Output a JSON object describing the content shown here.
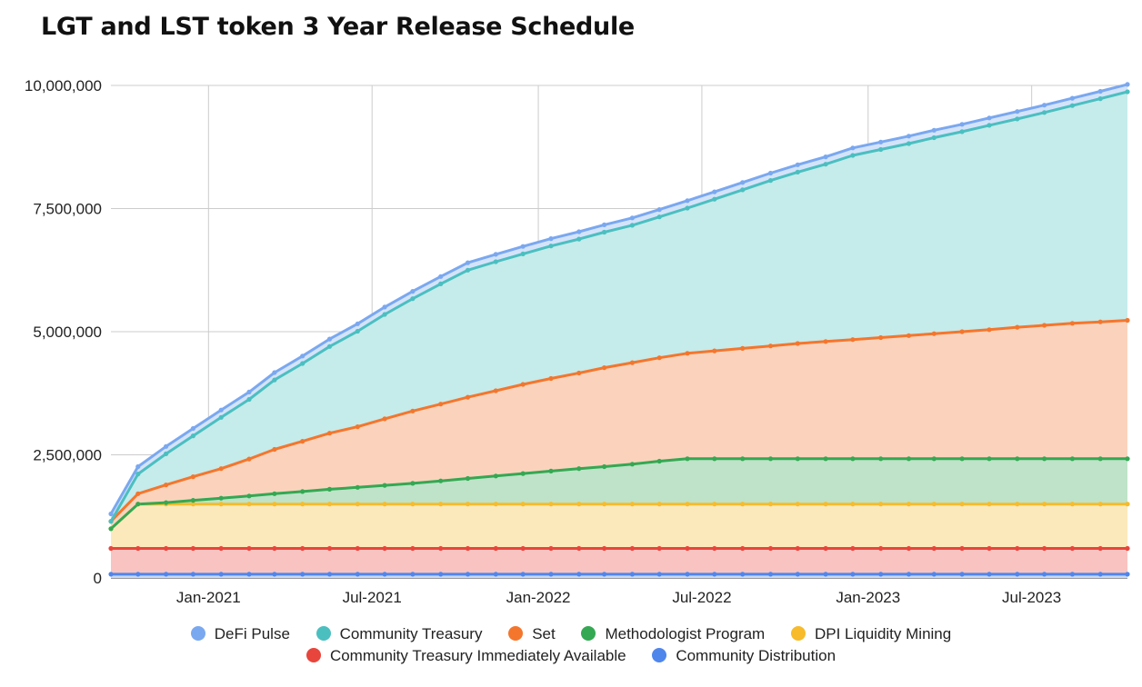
{
  "chart_data": {
    "type": "area",
    "stacked": true,
    "title": "LGT and LST token 3 Year Release Schedule",
    "xlabel": "",
    "ylabel": "",
    "ylim": [
      0,
      10000000
    ],
    "xlim": [
      "2020-09-15",
      "2023-10-15"
    ],
    "y_ticks": [
      0,
      2500000,
      5000000,
      7500000,
      10000000
    ],
    "y_tick_labels": [
      "0",
      "2,500,000",
      "5,000,000",
      "7,500,000",
      "10,000,000"
    ],
    "x_ticks": [
      "2021-01-01",
      "2021-07-01",
      "2022-01-01",
      "2022-07-01",
      "2023-01-01",
      "2023-07-01"
    ],
    "x_tick_labels": [
      "Jan-2021",
      "Jul-2021",
      "Jan-2022",
      "Jul-2022",
      "Jan-2023",
      "Jul-2023"
    ],
    "grid": true,
    "legend_position": "bottom",
    "x": [
      "2020-09-15",
      "2020-10-15",
      "2020-11-15",
      "2020-12-15",
      "2021-01-15",
      "2021-02-15",
      "2021-03-15",
      "2021-04-15",
      "2021-05-15",
      "2021-06-15",
      "2021-07-15",
      "2021-08-15",
      "2021-09-15",
      "2021-10-15",
      "2021-11-15",
      "2021-12-15",
      "2022-01-15",
      "2022-02-15",
      "2022-03-15",
      "2022-04-15",
      "2022-05-15",
      "2022-06-15",
      "2022-07-15",
      "2022-08-15",
      "2022-09-15",
      "2022-10-15",
      "2022-11-15",
      "2022-12-15",
      "2023-01-15",
      "2023-02-15",
      "2023-03-15",
      "2023-04-15",
      "2023-05-15",
      "2023-06-15",
      "2023-07-15",
      "2023-08-15",
      "2023-09-15",
      "2023-10-15"
    ],
    "series": [
      {
        "name": "Community Distribution",
        "color": "#4f86ec",
        "values": [
          75000,
          75000,
          75000,
          75000,
          75000,
          75000,
          75000,
          75000,
          75000,
          75000,
          75000,
          75000,
          75000,
          75000,
          75000,
          75000,
          75000,
          75000,
          75000,
          75000,
          75000,
          75000,
          75000,
          75000,
          75000,
          75000,
          75000,
          75000,
          75000,
          75000,
          75000,
          75000,
          75000,
          75000,
          75000,
          75000,
          75000,
          75000
        ]
      },
      {
        "name": "Community Treasury Immediately Available",
        "color": "#e8453c",
        "values": [
          525000,
          525000,
          525000,
          525000,
          525000,
          525000,
          525000,
          525000,
          525000,
          525000,
          525000,
          525000,
          525000,
          525000,
          525000,
          525000,
          525000,
          525000,
          525000,
          525000,
          525000,
          525000,
          525000,
          525000,
          525000,
          525000,
          525000,
          525000,
          525000,
          525000,
          525000,
          525000,
          525000,
          525000,
          525000,
          525000,
          525000,
          525000
        ]
      },
      {
        "name": "DPI Liquidity Mining",
        "color": "#f7bb2b",
        "values": [
          400000,
          900000,
          900000,
          900000,
          900000,
          900000,
          900000,
          900000,
          900000,
          900000,
          900000,
          900000,
          900000,
          900000,
          900000,
          900000,
          900000,
          900000,
          900000,
          900000,
          900000,
          900000,
          900000,
          900000,
          900000,
          900000,
          900000,
          900000,
          900000,
          900000,
          900000,
          900000,
          900000,
          900000,
          900000,
          900000,
          900000,
          900000
        ]
      },
      {
        "name": "Methodologist Program",
        "color": "#34a853",
        "values": [
          0,
          0,
          30000,
          75000,
          120000,
          165000,
          210000,
          255000,
          300000,
          340000,
          380000,
          420000,
          470000,
          520000,
          570000,
          620000,
          670000,
          720000,
          760000,
          810000,
          870000,
          920000,
          920000,
          920000,
          920000,
          920000,
          920000,
          920000,
          920000,
          920000,
          920000,
          920000,
          920000,
          920000,
          920000,
          920000,
          920000,
          920000
        ]
      },
      {
        "name": "Set",
        "color": "#f4762d",
        "values": [
          150000,
          210000,
          360000,
          480000,
          600000,
          750000,
          900000,
          1020000,
          1140000,
          1230000,
          1350000,
          1470000,
          1560000,
          1650000,
          1730000,
          1810000,
          1880000,
          1940000,
          2010000,
          2060000,
          2100000,
          2140000,
          2190000,
          2240000,
          2290000,
          2340000,
          2380000,
          2420000,
          2460000,
          2500000,
          2540000,
          2580000,
          2620000,
          2670000,
          2710000,
          2750000,
          2780000,
          2810000
        ]
      },
      {
        "name": "Community Treasury",
        "color": "#4bbfc0",
        "values": [
          0,
          400000,
          630000,
          830000,
          1040000,
          1210000,
          1410000,
          1580000,
          1760000,
          1940000,
          2120000,
          2280000,
          2440000,
          2580000,
          2620000,
          2650000,
          2690000,
          2720000,
          2750000,
          2790000,
          2860000,
          2950000,
          3080000,
          3220000,
          3360000,
          3480000,
          3600000,
          3740000,
          3820000,
          3900000,
          3980000,
          4060000,
          4150000,
          4230000,
          4320000,
          4420000,
          4530000,
          4640000
        ]
      },
      {
        "name": "DeFi Pulse",
        "color": "#7aa8f0",
        "values": [
          150000,
          150000,
          150000,
          150000,
          150000,
          150000,
          150000,
          150000,
          150000,
          150000,
          150000,
          150000,
          150000,
          150000,
          150000,
          150000,
          150000,
          150000,
          150000,
          150000,
          150000,
          150000,
          150000,
          150000,
          150000,
          150000,
          150000,
          150000,
          150000,
          150000,
          150000,
          150000,
          150000,
          150000,
          150000,
          150000,
          150000,
          150000
        ]
      }
    ]
  },
  "legend": {
    "row1": [
      {
        "label": "DeFi Pulse",
        "color": "#7aa8f0"
      },
      {
        "label": "Community Treasury",
        "color": "#4bbfc0"
      },
      {
        "label": "Set",
        "color": "#f4762d"
      },
      {
        "label": "Methodologist Program",
        "color": "#34a853"
      },
      {
        "label": "DPI Liquidity Mining",
        "color": "#f7bb2b"
      }
    ],
    "row2": [
      {
        "label": "Community Treasury Immediately Available",
        "color": "#e8453c"
      },
      {
        "label": "Community Distribution",
        "color": "#4f86ec"
      }
    ]
  }
}
